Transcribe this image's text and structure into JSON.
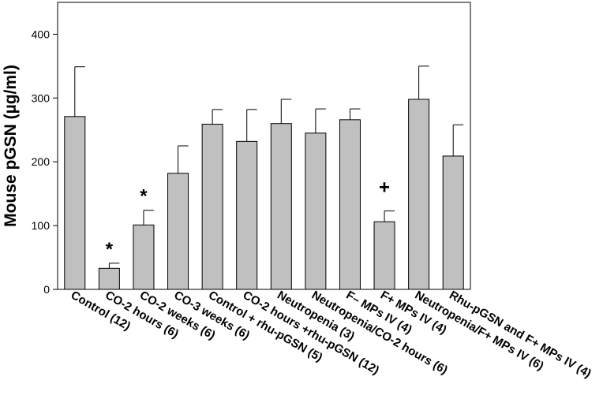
{
  "chart_data": {
    "type": "bar",
    "ylabel": "Mouse pGSN (µg/ml)",
    "ylim": [
      0,
      450
    ],
    "yticks": [
      0,
      100,
      200,
      300,
      400
    ],
    "categories": [
      "Control (12)",
      "CO-2 hours (6)",
      "CO-2 weeks (6)",
      "CO-3 weeks (6)",
      "Control + rhu-pGSN (5)",
      "CO-2 hours +rhu-pGSN (12)",
      "Neutropenia (3)",
      "Neutropenia/CO-2 hours (6)",
      "F– MPs IV (4)",
      "F+ MPs IV (4)",
      "Neutropenia/F+ MPs IV (6)",
      "Rhu-pGSN and F+ MPs IV (4)"
    ],
    "values": [
      271,
      33,
      101,
      182,
      259,
      232,
      260,
      245,
      266,
      106,
      298,
      209
    ],
    "errors": [
      78,
      8,
      23,
      43,
      23,
      50,
      38,
      38,
      17,
      17,
      52,
      49
    ],
    "annotations": [
      {
        "category": "CO-2 hours (6)",
        "text": "*"
      },
      {
        "category": "CO-2 weeks (6)",
        "text": "*"
      },
      {
        "category": "F+ MPs IV (4)",
        "text": "+"
      }
    ],
    "bar_color": "#c0c0c0",
    "grid": false,
    "legend": "none"
  }
}
